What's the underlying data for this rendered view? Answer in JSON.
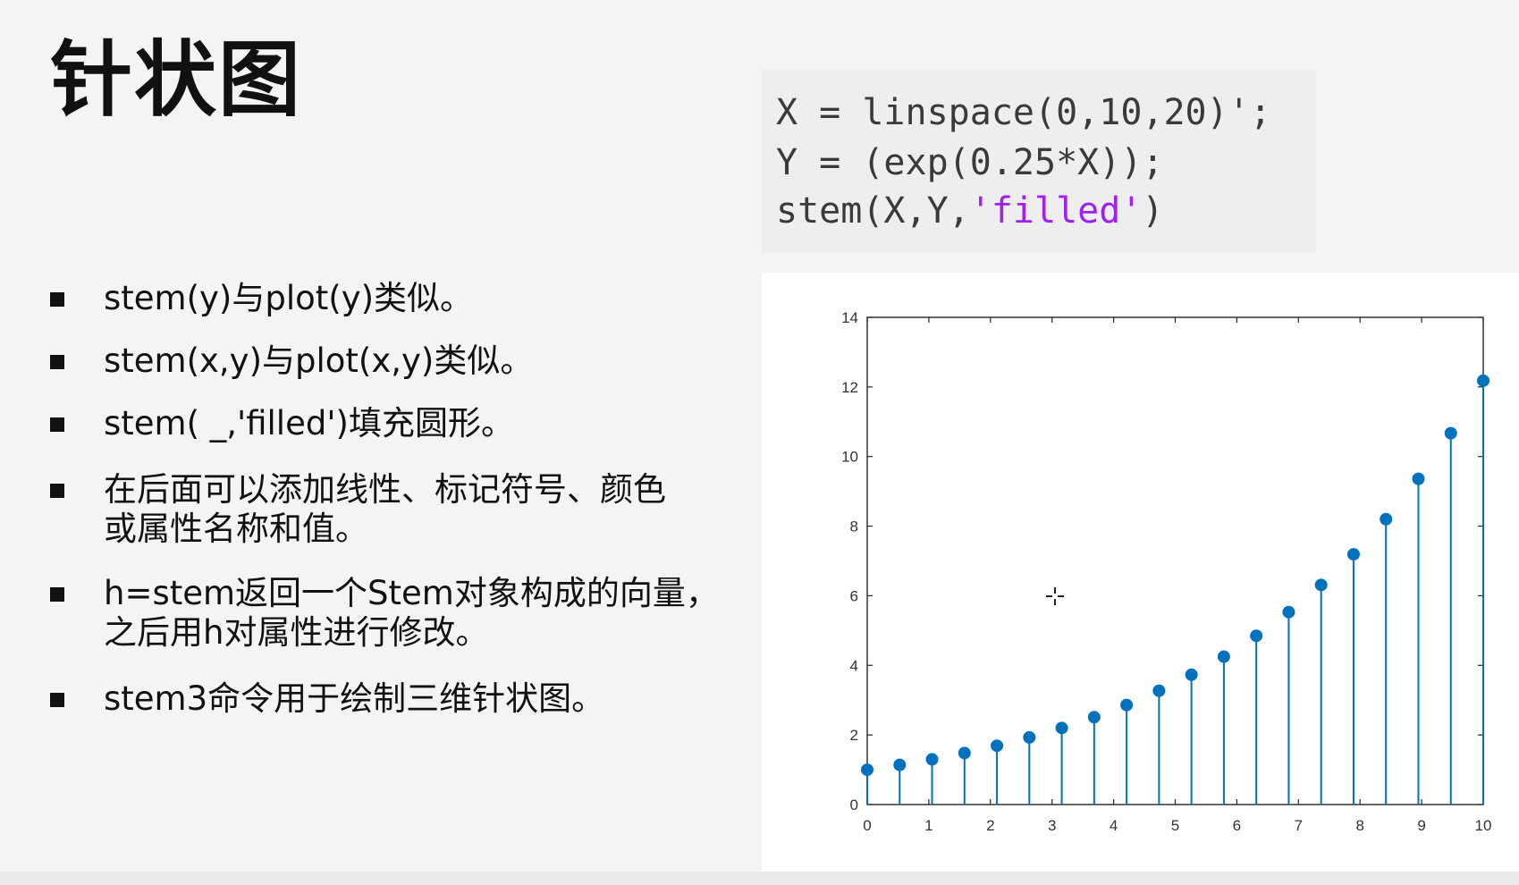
{
  "slide": {
    "title": "针状图",
    "code": {
      "line1": "X = linspace(0,10,20)';",
      "line2": "Y = (exp(0.25*X));",
      "line3_prefix": "stem(X,Y,",
      "line3_string": "'filled'",
      "line3_suffix": ")"
    },
    "bullets": [
      "stem(y)与plot(y)类似。",
      "stem(x,y)与plot(x,y)类似。",
      "stem( _,'filled')填充圆形。",
      "在后面可以添加线性、标记符号、颜色\n或属性名称和值。",
      "h=stem返回一个Stem对象构成的向量，\n之后用h对属性进行修改。",
      "stem3命令用于绘制三维针状图。"
    ]
  },
  "colors": {
    "stem": "#0072bd",
    "code_string": "#a020f0",
    "axis": "#262626"
  },
  "chart_data": {
    "type": "stem",
    "marker": "filled circle",
    "xlim": [
      0,
      10
    ],
    "ylim": [
      0,
      14
    ],
    "xticks": [
      0,
      1,
      2,
      3,
      4,
      5,
      6,
      7,
      8,
      9,
      10
    ],
    "yticks": [
      0,
      2,
      4,
      6,
      8,
      10,
      12,
      14
    ],
    "grid": false,
    "box": true,
    "x": [
      0,
      0.5263,
      1.0526,
      1.5789,
      2.1053,
      2.6316,
      3.1579,
      3.6842,
      4.2105,
      4.7368,
      5.2632,
      5.7895,
      6.3158,
      6.8421,
      7.3684,
      7.8947,
      8.4211,
      8.9474,
      9.4737,
      10
    ],
    "y": [
      1.0,
      1.14,
      1.3,
      1.48,
      1.69,
      1.93,
      2.2,
      2.51,
      2.86,
      3.27,
      3.73,
      4.25,
      4.85,
      5.53,
      6.31,
      7.19,
      8.2,
      9.36,
      10.67,
      12.18
    ]
  }
}
